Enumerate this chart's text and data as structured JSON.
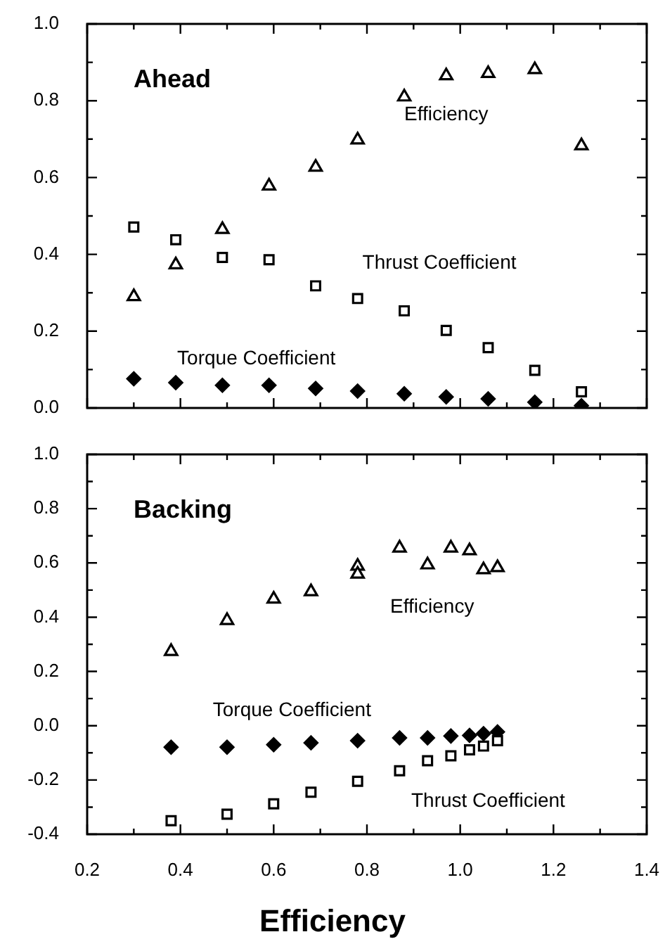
{
  "chart_data": [
    {
      "type": "scatter",
      "title": "Ahead",
      "tick_labels": "y",
      "xlim": [
        0.2,
        1.4
      ],
      "xticks": [
        0.2,
        {
          "value": 0.3,
          "label": null
        },
        0.4,
        {
          "value": 0.5,
          "label": null
        },
        0.6,
        {
          "value": 0.7,
          "label": null
        },
        0.8,
        {
          "value": 0.9,
          "label": null
        },
        1.0,
        {
          "value": 1.1,
          "label": null
        },
        1.2,
        {
          "value": 1.3,
          "label": null
        },
        1.4
      ],
      "ylim": [
        0,
        1.0
      ],
      "yticks": [
        {
          "value": 0,
          "label": "0.0"
        },
        {
          "value": 0.1,
          "label": null
        },
        0.2,
        {
          "value": 0.3,
          "label": null
        },
        0.4,
        {
          "value": 0.5,
          "label": null
        },
        0.6,
        {
          "value": 0.7,
          "label": null
        },
        0.8,
        {
          "value": 0.9,
          "label": null
        },
        {
          "value": 1,
          "label": "1.0"
        }
      ],
      "series": [
        {
          "name": "Efficiency",
          "color": "#000000",
          "marker": "triangle",
          "x": [
            0.3,
            0.39,
            0.49,
            0.59,
            0.69,
            0.78,
            0.88,
            0.97,
            1.06,
            1.16,
            1.26
          ],
          "values": [
            0.29,
            0.373,
            0.465,
            0.578,
            0.627,
            0.698,
            0.81,
            0.865,
            0.871,
            0.881,
            0.683
          ]
        },
        {
          "name": "Thrust Coefficient",
          "color": "#000000",
          "marker": "square",
          "x": [
            0.3,
            0.39,
            0.49,
            0.59,
            0.69,
            0.78,
            0.88,
            0.97,
            1.06,
            1.16,
            1.26
          ],
          "values": [
            0.471,
            0.438,
            0.392,
            0.386,
            0.318,
            0.285,
            0.253,
            0.202,
            0.157,
            0.098,
            0.042
          ]
        },
        {
          "name": "Torque Coefficient",
          "color": "#000000",
          "marker": "diamond",
          "x": [
            0.3,
            0.39,
            0.49,
            0.59,
            0.69,
            0.78,
            0.88,
            0.97,
            1.06,
            1.16,
            1.26
          ],
          "values": [
            0.076,
            0.066,
            0.059,
            0.059,
            0.051,
            0.044,
            0.037,
            0.029,
            0.024,
            0.015,
            0.006
          ]
        }
      ]
    },
    {
      "type": "scatter",
      "title": "Backing",
      "xlabel": "Efficiency",
      "xlim": [
        0.2,
        1.4
      ],
      "xticks": [
        0.2,
        {
          "value": 0.3,
          "label": null
        },
        0.4,
        {
          "value": 0.5,
          "label": null
        },
        0.6,
        {
          "value": 0.7,
          "label": null
        },
        0.8,
        {
          "value": 0.9,
          "label": null
        },
        {
          "value": 1,
          "label": "1.0"
        },
        {
          "value": 1.1,
          "label": null
        },
        1.2,
        {
          "value": 1.3,
          "label": null
        },
        1.4
      ],
      "ylim": [
        -0.4,
        1.0
      ],
      "yticks": [
        -0.4,
        {
          "value": -0.3,
          "label": null
        },
        -0.2,
        {
          "value": -0.1,
          "label": null
        },
        {
          "value": 0,
          "label": "0.0"
        },
        {
          "value": 0.1,
          "label": null
        },
        0.2,
        {
          "value": 0.3,
          "label": null
        },
        0.4,
        {
          "value": 0.5,
          "label": null
        },
        0.6,
        {
          "value": 0.7,
          "label": null
        },
        0.8,
        {
          "value": 0.9,
          "label": null
        },
        {
          "value": 1,
          "label": "1.0"
        }
      ],
      "series": [
        {
          "name": "Efficiency",
          "color": "#000000",
          "marker": "triangle",
          "x": [
            0.38,
            0.5,
            0.6,
            0.68,
            0.78,
            0.78,
            0.87,
            0.93,
            0.98,
            1.02,
            1.05,
            1.08
          ],
          "values": [
            0.274,
            0.388,
            0.467,
            0.494,
            0.588,
            0.559,
            0.655,
            0.593,
            0.655,
            0.645,
            0.575,
            0.583
          ]
        },
        {
          "name": "Thrust Coefficient",
          "color": "#000000",
          "marker": "square",
          "x": [
            0.38,
            0.5,
            0.6,
            0.68,
            0.78,
            0.87,
            0.93,
            0.98,
            1.02,
            1.05,
            1.08
          ],
          "values": [
            -0.35,
            -0.326,
            -0.288,
            -0.245,
            -0.205,
            -0.166,
            -0.129,
            -0.111,
            -0.089,
            -0.075,
            -0.055
          ]
        },
        {
          "name": "Torque Coefficient",
          "color": "#000000",
          "marker": "diamond",
          "x": [
            0.38,
            0.5,
            0.6,
            0.68,
            0.78,
            0.87,
            0.93,
            0.98,
            1.02,
            1.05,
            1.08
          ],
          "values": [
            -0.079,
            -0.079,
            -0.07,
            -0.063,
            -0.055,
            -0.045,
            -0.045,
            -0.038,
            -0.036,
            -0.029,
            -0.023
          ]
        }
      ]
    }
  ]
}
